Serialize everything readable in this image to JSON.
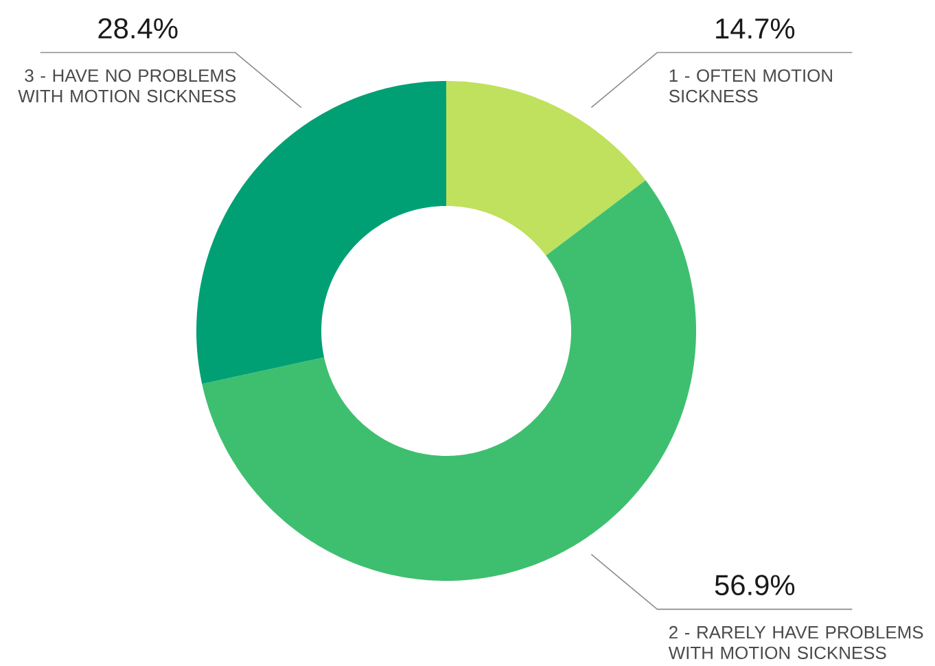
{
  "chart_data": {
    "type": "donut",
    "categories": [
      "1 - OFTEN MOTION SICKNESS",
      "2 - RARELY HAVE PROBLEMS WITH MOTION SICKNESS",
      "3 - HAVE NO PROBLEMS WITH MOTION SICKNESS"
    ],
    "values": [
      14.7,
      56.9,
      28.4
    ],
    "colors": [
      "#bfe15d",
      "#3ebf6f",
      "#01a074"
    ],
    "value_labels": [
      "14.7%",
      "56.9%",
      "28.4%"
    ]
  }
}
